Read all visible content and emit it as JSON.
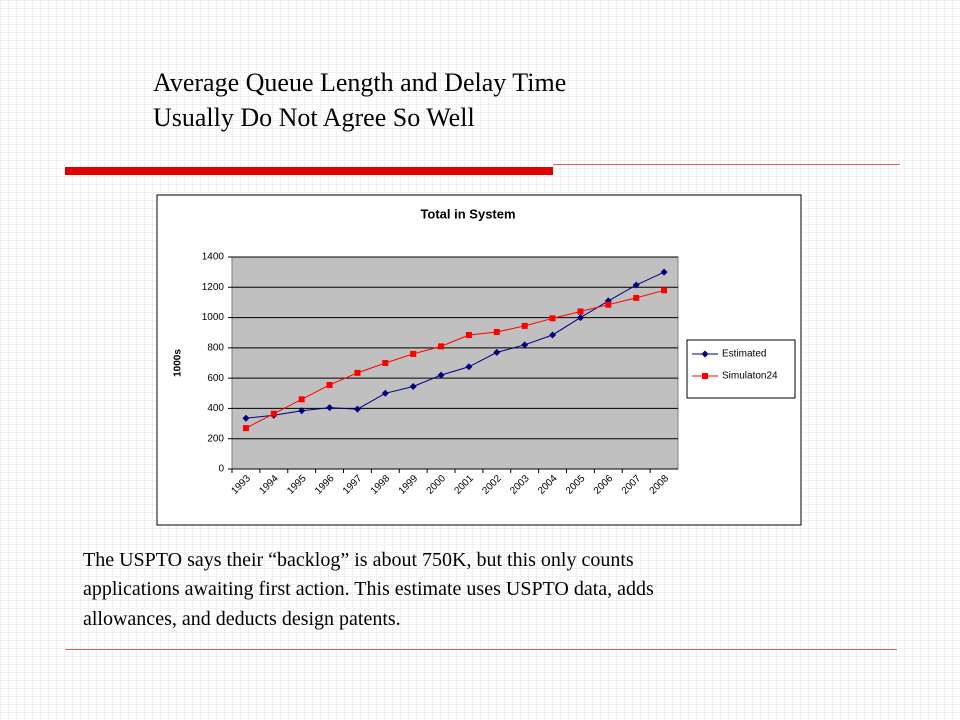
{
  "slide": {
    "title_lines": [
      "Average Queue Length and Delay Time",
      "Usually Do Not Agree So Well"
    ],
    "body_lines": [
      "The USPTO says their “backlog” is about 750K, but this only counts",
      "applications awaiting first action.  This estimate uses USPTO data, adds",
      "allowances, and deducts design patents."
    ]
  },
  "chart_data": {
    "type": "line",
    "title": "Total in System",
    "y_label": "1000s",
    "categories": [
      "1993",
      "1994",
      "1995",
      "1996",
      "1997",
      "1998",
      "1999",
      "2000",
      "2001",
      "2002",
      "2003",
      "2004",
      "2005",
      "2006",
      "2007",
      "2008"
    ],
    "series": [
      {
        "name": "Estimated",
        "color": "#000080",
        "marker": "diamond",
        "values": [
          335,
          355,
          385,
          405,
          395,
          500,
          545,
          620,
          675,
          770,
          820,
          885,
          1000,
          1110,
          1215,
          1300
        ]
      },
      {
        "name": "Simulaton24",
        "color": "#ff0000",
        "marker": "square",
        "values": [
          270,
          365,
          460,
          555,
          635,
          700,
          760,
          810,
          885,
          905,
          945,
          995,
          1040,
          1085,
          1130,
          1180
        ]
      }
    ],
    "ylim": [
      0,
      1400
    ],
    "yticks": [
      0,
      200,
      400,
      600,
      800,
      1000,
      1200,
      1400
    ],
    "grid": true,
    "legend": "right"
  }
}
